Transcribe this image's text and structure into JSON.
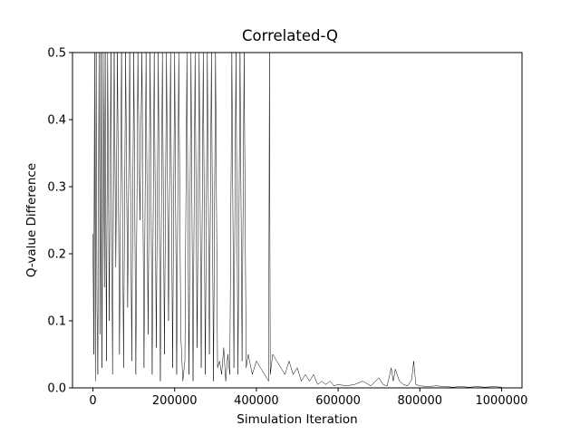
{
  "chart_data": {
    "type": "line",
    "title": "Correlated-Q",
    "xlabel": "Simulation Iteration",
    "ylabel": "Q-value Difference",
    "xlim": [
      -50000,
      1050000
    ],
    "ylim": [
      0,
      0.5
    ],
    "xticks": [
      0,
      200000,
      400000,
      600000,
      800000,
      1000000
    ],
    "yticks": [
      0.0,
      0.1,
      0.2,
      0.3,
      0.4,
      0.5
    ],
    "xtick_labels": [
      "0",
      "200000",
      "400000",
      "600000",
      "800000",
      "1000000"
    ],
    "ytick_labels": [
      "0.0",
      "0.1",
      "0.2",
      "0.3",
      "0.4",
      "0.5"
    ],
    "grid": false,
    "legend": "none",
    "line_color": "#000000",
    "series": [
      {
        "x": [
          0,
          2000,
          4000,
          6000,
          8000,
          10000,
          12000,
          15000,
          18000,
          20000,
          22000,
          25000,
          28000,
          30000,
          33000,
          36000,
          40000,
          44000,
          48000,
          52000,
          56000,
          60000,
          65000,
          70000,
          75000,
          80000,
          85000,
          90000,
          95000,
          100000,
          105000,
          110000,
          115000,
          120000,
          125000,
          130000,
          135000,
          140000,
          145000,
          150000,
          155000,
          160000,
          165000,
          170000,
          175000,
          180000,
          185000,
          190000,
          195000,
          200000,
          205000,
          210000,
          215000,
          220000,
          225000,
          230000,
          235000,
          240000,
          245000,
          250000,
          255000,
          260000,
          265000,
          270000,
          275000,
          280000,
          285000,
          290000,
          295000,
          300000,
          305000,
          310000,
          315000,
          320000,
          325000,
          330000,
          335000,
          340000,
          345000,
          350000,
          355000,
          360000,
          365000,
          370000,
          375000,
          380000,
          390000,
          400000,
          410000,
          420000,
          430000,
          432000,
          434000,
          440000,
          450000,
          460000,
          470000,
          480000,
          490000,
          500000,
          510000,
          520000,
          530000,
          540000,
          550000,
          560000,
          570000,
          580000,
          590000,
          600000,
          620000,
          640000,
          660000,
          680000,
          700000,
          710000,
          720000,
          730000,
          735000,
          740000,
          750000,
          760000,
          770000,
          780000,
          785000,
          790000,
          800000,
          820000,
          840000,
          860000,
          880000,
          900000,
          920000,
          940000,
          960000,
          980000,
          1000000
        ],
        "y": [
          0.23,
          0.05,
          0.5,
          0.01,
          0.5,
          0.12,
          0.02,
          0.5,
          0.08,
          0.5,
          0.03,
          0.5,
          0.15,
          0.5,
          0.04,
          0.5,
          0.1,
          0.5,
          0.02,
          0.5,
          0.18,
          0.5,
          0.05,
          0.5,
          0.03,
          0.5,
          0.12,
          0.5,
          0.04,
          0.5,
          0.02,
          0.5,
          0.25,
          0.5,
          0.03,
          0.5,
          0.08,
          0.5,
          0.02,
          0.5,
          0.06,
          0.5,
          0.01,
          0.5,
          0.05,
          0.5,
          0.1,
          0.5,
          0.03,
          0.5,
          0.02,
          0.5,
          0.08,
          0.01,
          0.04,
          0.5,
          0.02,
          0.5,
          0.01,
          0.5,
          0.06,
          0.5,
          0.03,
          0.5,
          0.02,
          0.5,
          0.05,
          0.5,
          0.01,
          0.5,
          0.03,
          0.04,
          0.02,
          0.06,
          0.01,
          0.05,
          0.02,
          0.5,
          0.03,
          0.5,
          0.02,
          0.5,
          0.04,
          0.5,
          0.03,
          0.05,
          0.02,
          0.04,
          0.03,
          0.02,
          0.01,
          0.5,
          0.02,
          0.05,
          0.04,
          0.03,
          0.02,
          0.04,
          0.02,
          0.03,
          0.01,
          0.02,
          0.01,
          0.02,
          0.005,
          0.01,
          0.005,
          0.01,
          0.003,
          0.005,
          0.003,
          0.005,
          0.01,
          0.003,
          0.015,
          0.005,
          0.003,
          0.03,
          0.01,
          0.028,
          0.01,
          0.005,
          0.003,
          0.012,
          0.04,
          0.005,
          0.003,
          0.002,
          0.003,
          0.002,
          0.001,
          0.002,
          0.001,
          0.002,
          0.001,
          0.002,
          0.001
        ]
      }
    ]
  }
}
